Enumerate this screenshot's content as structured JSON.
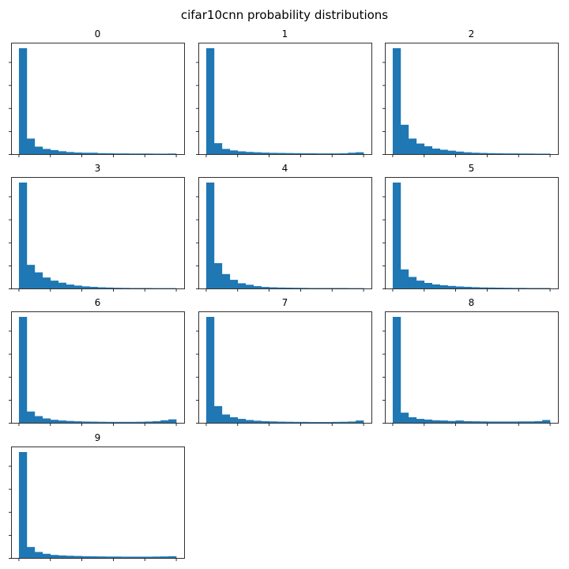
{
  "figure": {
    "title": "cifar10cnn probability distributions",
    "bar_color": "#1f77b4"
  },
  "chart_data": [
    {
      "type": "bar",
      "title": "0",
      "bins": 20,
      "ylim": [
        0,
        1
      ],
      "values": [
        0.92,
        0.135,
        0.065,
        0.045,
        0.035,
        0.025,
        0.018,
        0.014,
        0.012,
        0.012,
        0.008,
        0.007,
        0.006,
        0.006,
        0.005,
        0.005,
        0.005,
        0.004,
        0.004,
        0.005
      ]
    },
    {
      "type": "bar",
      "title": "1",
      "bins": 20,
      "ylim": [
        0,
        1
      ],
      "values": [
        0.92,
        0.095,
        0.045,
        0.032,
        0.024,
        0.019,
        0.016,
        0.013,
        0.011,
        0.01,
        0.009,
        0.008,
        0.007,
        0.007,
        0.006,
        0.006,
        0.006,
        0.007,
        0.012,
        0.016
      ]
    },
    {
      "type": "bar",
      "title": "2",
      "bins": 20,
      "ylim": [
        0,
        1
      ],
      "values": [
        0.92,
        0.255,
        0.135,
        0.092,
        0.068,
        0.048,
        0.038,
        0.03,
        0.022,
        0.016,
        0.012,
        0.01,
        0.008,
        0.007,
        0.006,
        0.006,
        0.005,
        0.005,
        0.004,
        0.004
      ]
    },
    {
      "type": "bar",
      "title": "3",
      "bins": 20,
      "ylim": [
        0,
        1
      ],
      "values": [
        0.92,
        0.205,
        0.14,
        0.095,
        0.068,
        0.05,
        0.034,
        0.025,
        0.018,
        0.014,
        0.01,
        0.008,
        0.006,
        0.005,
        0.004,
        0.004,
        0.004,
        0.003,
        0.003,
        0.003
      ]
    },
    {
      "type": "bar",
      "title": "4",
      "bins": 20,
      "ylim": [
        0,
        1
      ],
      "values": [
        0.92,
        0.22,
        0.125,
        0.075,
        0.045,
        0.032,
        0.02,
        0.013,
        0.01,
        0.008,
        0.007,
        0.006,
        0.005,
        0.004,
        0.004,
        0.004,
        0.004,
        0.004,
        0.003,
        0.003
      ]
    },
    {
      "type": "bar",
      "title": "5",
      "bins": 20,
      "ylim": [
        0,
        1
      ],
      "values": [
        0.92,
        0.165,
        0.1,
        0.068,
        0.048,
        0.035,
        0.028,
        0.022,
        0.017,
        0.014,
        0.011,
        0.009,
        0.008,
        0.007,
        0.006,
        0.005,
        0.005,
        0.004,
        0.004,
        0.004
      ]
    },
    {
      "type": "bar",
      "title": "6",
      "bins": 20,
      "ylim": [
        0,
        1
      ],
      "values": [
        0.92,
        0.098,
        0.058,
        0.038,
        0.026,
        0.02,
        0.016,
        0.013,
        0.011,
        0.01,
        0.009,
        0.008,
        0.008,
        0.008,
        0.008,
        0.009,
        0.011,
        0.014,
        0.022,
        0.03
      ]
    },
    {
      "type": "bar",
      "title": "7",
      "bins": 20,
      "ylim": [
        0,
        1
      ],
      "values": [
        0.92,
        0.145,
        0.072,
        0.048,
        0.034,
        0.024,
        0.018,
        0.014,
        0.012,
        0.01,
        0.009,
        0.008,
        0.008,
        0.007,
        0.007,
        0.007,
        0.008,
        0.009,
        0.011,
        0.02
      ]
    },
    {
      "type": "bar",
      "title": "8",
      "bins": 20,
      "ylim": [
        0,
        1
      ],
      "values": [
        0.92,
        0.088,
        0.048,
        0.034,
        0.028,
        0.022,
        0.02,
        0.016,
        0.02,
        0.014,
        0.013,
        0.012,
        0.011,
        0.011,
        0.011,
        0.011,
        0.012,
        0.012,
        0.014,
        0.024
      ]
    },
    {
      "type": "bar",
      "title": "9",
      "bins": 20,
      "ylim": [
        0,
        1
      ],
      "values": [
        0.92,
        0.095,
        0.052,
        0.036,
        0.026,
        0.022,
        0.019,
        0.017,
        0.015,
        0.014,
        0.013,
        0.012,
        0.012,
        0.011,
        0.011,
        0.011,
        0.011,
        0.012,
        0.013,
        0.015
      ]
    }
  ]
}
